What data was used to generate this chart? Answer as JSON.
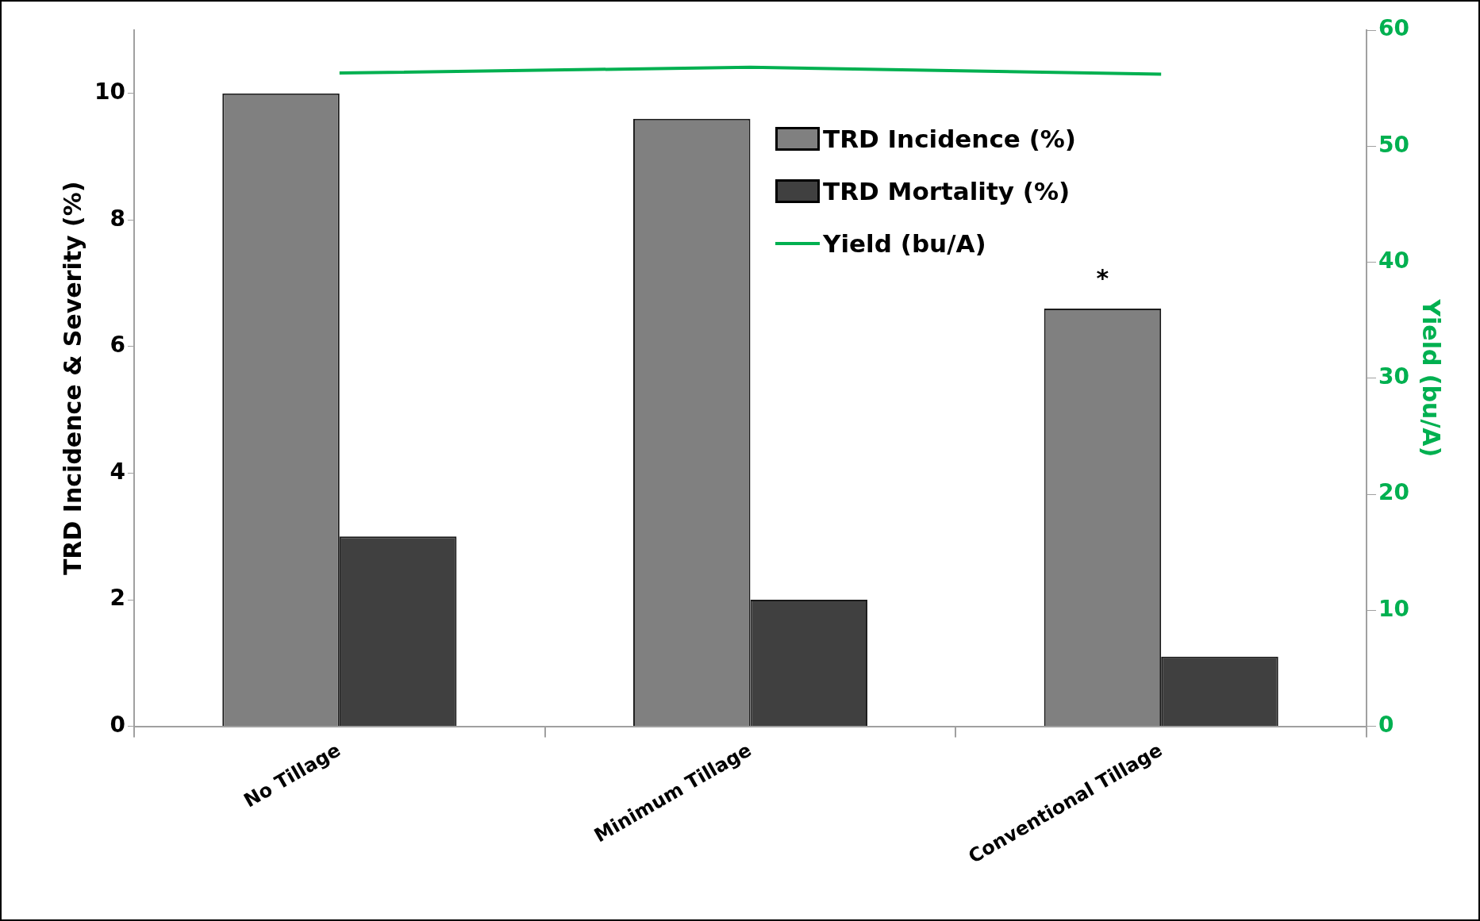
{
  "chart_data": {
    "type": "bar",
    "categories": [
      "No Tillage",
      "Minimum Tillage",
      "Conventional Tillage"
    ],
    "series": [
      {
        "name": "TRD Incidence (%)",
        "color": "#808080",
        "values": [
          10,
          9.6,
          6.6
        ]
      },
      {
        "name": "TRD Mortality (%)",
        "color": "#404040",
        "values": [
          3,
          2,
          1.1
        ]
      },
      {
        "name": "Yield (bu/A)",
        "type": "line",
        "axis": "y2",
        "color": "#00b050",
        "values": [
          56.3,
          56.8,
          56.2
        ]
      }
    ],
    "ylabel": "TRD Incidence & Severity (%)",
    "y2label": "Yield (bu/A)",
    "ylim": [
      0,
      11
    ],
    "yticks": [
      0,
      2,
      4,
      6,
      8,
      10
    ],
    "y2lim": [
      0,
      60
    ],
    "y2ticks": [
      0,
      10,
      20,
      30,
      40,
      50,
      60
    ],
    "annotations": [
      "*"
    ],
    "grid": false,
    "legend": "top right",
    "marker": "none"
  }
}
